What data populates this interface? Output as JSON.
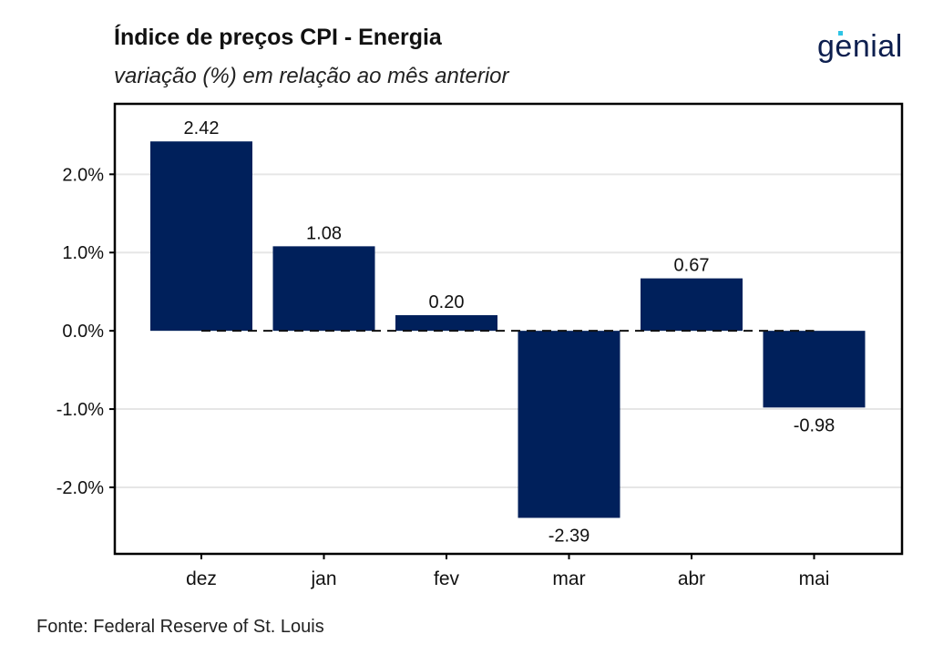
{
  "header": {
    "title": "Índice de preços CPI - Energia",
    "subtitle": "variação (%) em relação ao mês anterior",
    "logo_text": "genial"
  },
  "footer": {
    "source": "Fonte: Federal Reserve of St. Louis"
  },
  "colors": {
    "bar": "#00205b",
    "grid": "#e6e6e6",
    "zero_line": "#111111"
  },
  "chart_data": {
    "type": "bar",
    "title": "Índice de preços CPI - Energia",
    "subtitle": "variação (%) em relação ao mês anterior",
    "categories": [
      "dez",
      "jan",
      "fev",
      "mar",
      "abr",
      "mai"
    ],
    "values": [
      2.42,
      1.08,
      0.2,
      -2.39,
      0.67,
      -0.98
    ],
    "data_labels": [
      "2.42",
      "1.08",
      "0.20",
      "-2.39",
      "0.67",
      "-0.98"
    ],
    "y_ticks": [
      2.0,
      1.0,
      0.0,
      -1.0,
      -2.0
    ],
    "y_tick_labels": [
      "2.0%",
      "1.0%",
      "0.0%",
      "-1.0%",
      "-2.0%"
    ],
    "ylim": [
      -2.85,
      2.9
    ],
    "xlabel": "",
    "ylabel": "",
    "grid": true,
    "zero_line": "dashed"
  }
}
